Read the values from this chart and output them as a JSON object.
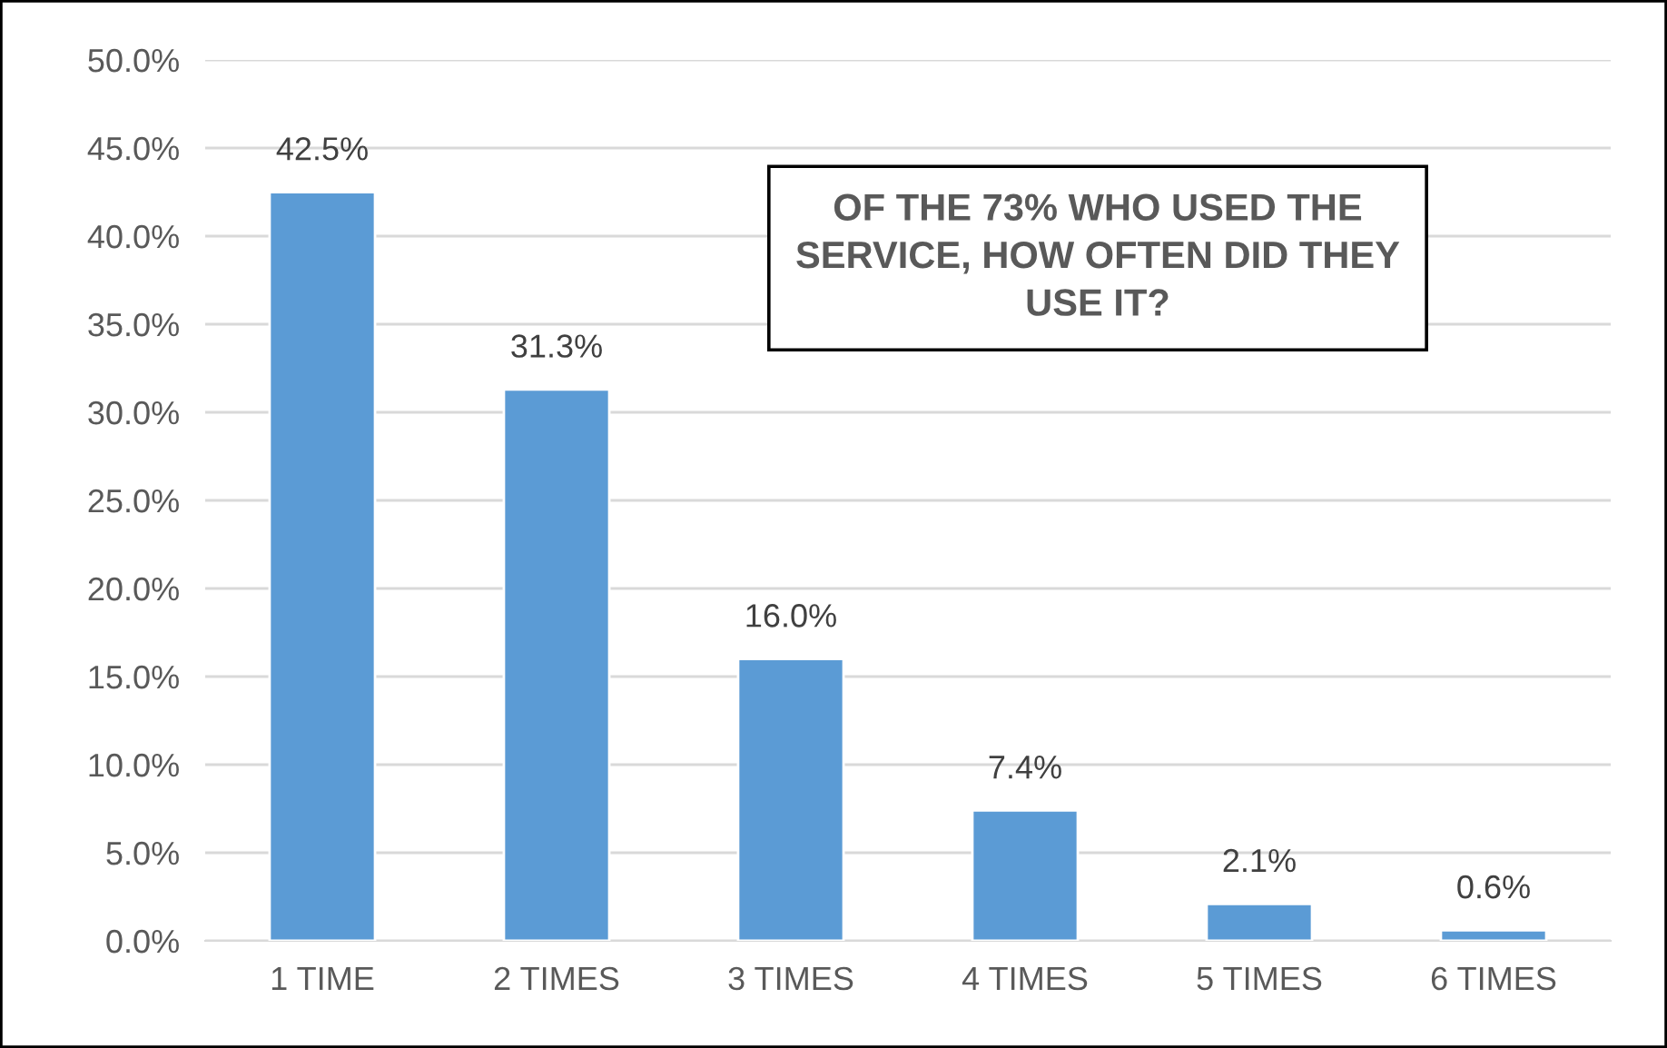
{
  "chart_data": {
    "type": "bar",
    "title": "OF THE 73% WHO USED THE\nSERVICE, HOW OFTEN DID THEY\nUSE IT?",
    "categories": [
      "1 TIME",
      "2 TIMES",
      "3 TIMES",
      "4 TIMES",
      "5 TIMES",
      "6 TIMES"
    ],
    "values": [
      42.5,
      31.3,
      16.0,
      7.4,
      2.1,
      0.6
    ],
    "color": "#5b9bd5",
    "value_labels": [
      "42.5%",
      "31.3%",
      "16.0%",
      "7.4%",
      "2.1%",
      "0.6%"
    ],
    "ylim": [
      0,
      50
    ],
    "yticks": [
      {
        "value": 0,
        "label": "0.0%"
      },
      {
        "value": 5,
        "label": "5.0%"
      },
      {
        "value": 10,
        "label": "10.0%"
      },
      {
        "value": 15,
        "label": "15.0%"
      },
      {
        "value": 20,
        "label": "20.0%"
      },
      {
        "value": 25,
        "label": "25.0%"
      },
      {
        "value": 30,
        "label": "30.0%"
      },
      {
        "value": 35,
        "label": "35.0%"
      },
      {
        "value": 40,
        "label": "40.0%"
      },
      {
        "value": 45,
        "label": "45.0%"
      },
      {
        "value": 50,
        "label": "50.0%"
      }
    ],
    "grid": "y",
    "legend": false
  }
}
